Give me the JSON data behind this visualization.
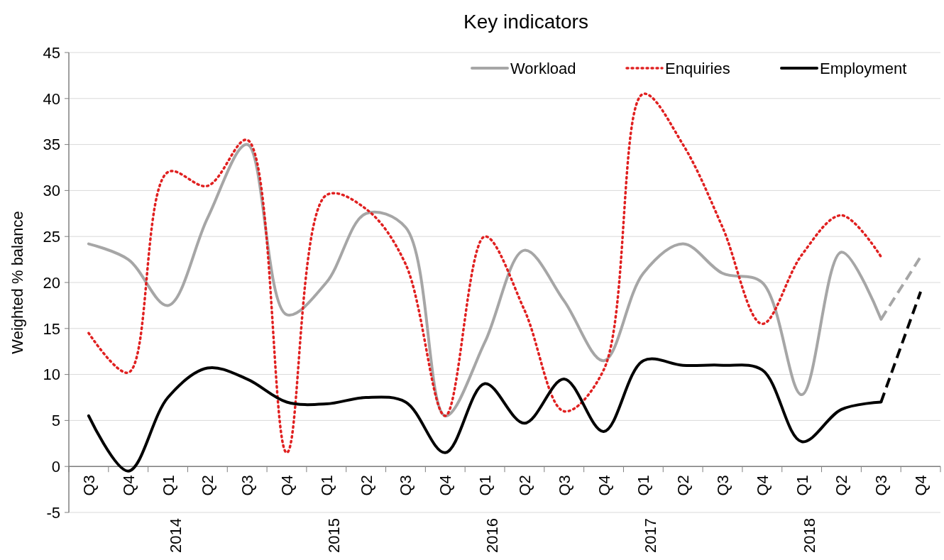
{
  "chart_data": {
    "type": "line",
    "title": "Key indicators",
    "ylabel": "Weighted % balance",
    "categories": [
      "Q3",
      "Q4",
      "Q1 2014",
      "Q2",
      "Q3",
      "Q4",
      "Q1 2015",
      "Q2",
      "Q3",
      "Q4",
      "Q1 2016",
      "Q2",
      "Q3",
      "Q4",
      "Q1 2017",
      "Q2",
      "Q3",
      "Q4",
      "Q1 2018",
      "Q2",
      "Q3",
      "Q4"
    ],
    "series": [
      {
        "name": "Workload",
        "color": "#a6a6a6",
        "line_style": "solid",
        "values": [
          24.2,
          22.5,
          17.5,
          27,
          35,
          16.5,
          20,
          27.5,
          26,
          5.5,
          13.5,
          23.5,
          18,
          11.5,
          21,
          24.2,
          21,
          20,
          7.8,
          23.3,
          16,
          null
        ]
      },
      {
        "name": "Enquiries",
        "color": "#e02020",
        "line_style": "dotted",
        "values": [
          14.5,
          10.2,
          32,
          30.5,
          35.5,
          1.5,
          29.5,
          28,
          22,
          5.5,
          25,
          17,
          6,
          10.5,
          40.5,
          35,
          26,
          15.5,
          23,
          27.3,
          22.8,
          null
        ]
      },
      {
        "name": "Employment",
        "color": "#000000",
        "line_style": "solid",
        "values": [
          5.5,
          -0.5,
          7.5,
          10.7,
          9.5,
          7,
          6.8,
          7.5,
          7,
          1.5,
          9,
          4.7,
          9.5,
          3.8,
          11.5,
          11,
          11,
          10.5,
          2.7,
          6.2,
          7,
          null
        ]
      },
      {
        "color": "#a6a6a6",
        "line_style": "dashed",
        "values": [
          null,
          null,
          null,
          null,
          null,
          null,
          null,
          null,
          null,
          null,
          null,
          null,
          null,
          null,
          null,
          null,
          null,
          null,
          null,
          null,
          16,
          22.8
        ]
      },
      {
        "color": "#000000",
        "line_style": "dashed",
        "values": [
          null,
          null,
          null,
          null,
          null,
          null,
          null,
          null,
          null,
          null,
          null,
          null,
          null,
          null,
          null,
          null,
          null,
          null,
          null,
          null,
          7,
          19
        ]
      }
    ],
    "ylim": [
      -5,
      45
    ],
    "yticks": [
      -5,
      0,
      5,
      10,
      15,
      20,
      25,
      30,
      35,
      40,
      45
    ],
    "grid": "y",
    "legend": "top right",
    "marker": "none"
  }
}
